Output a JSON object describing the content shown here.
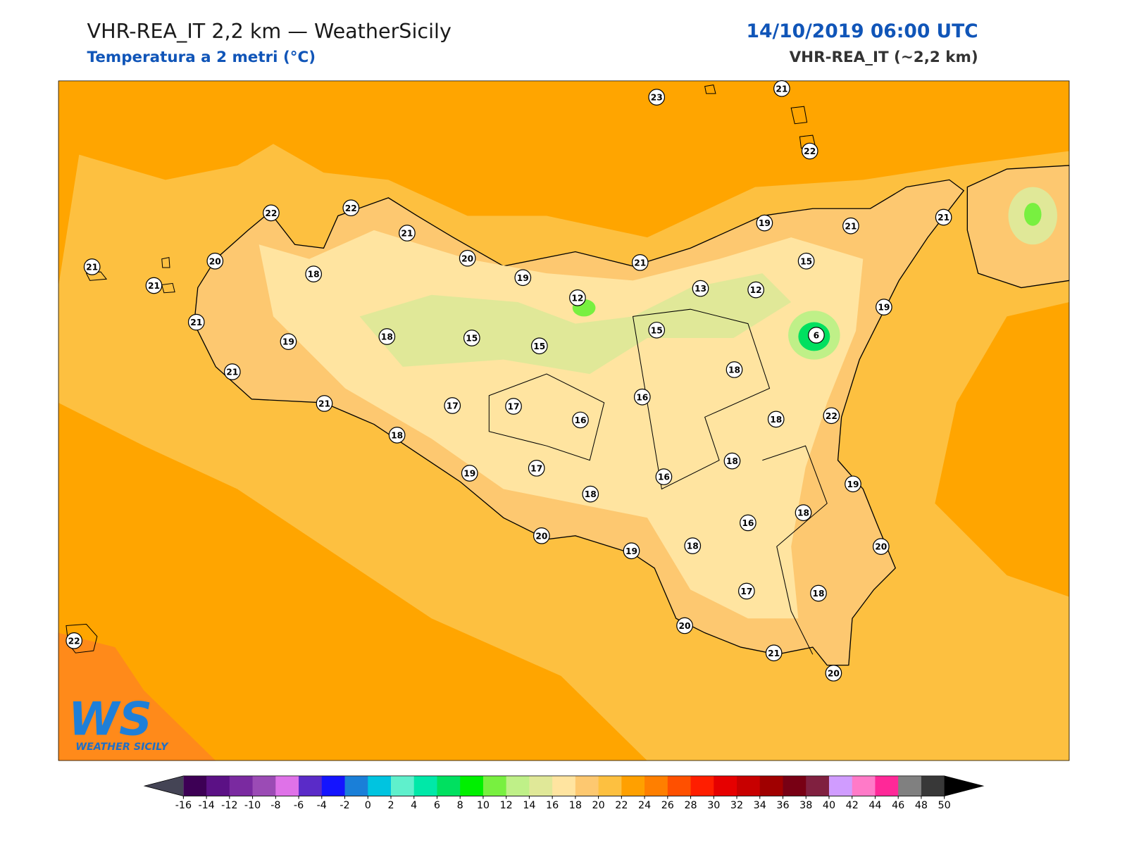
{
  "header": {
    "title": "VHR-REA_IT 2,2 km — WeatherSicily",
    "subtitle": "Temperatura a 2 metri (°C)",
    "datetime": "14/10/2019 06:00 UTC",
    "model": "VHR-REA_IT (~2,2 km)"
  },
  "logo": {
    "mark": "WS",
    "name": "WEATHER SICILY"
  },
  "stations": [
    23,
    21,
    22,
    22,
    22,
    21,
    20,
    21,
    21,
    18,
    21,
    19,
    21,
    20,
    19,
    12,
    21,
    19,
    21,
    21,
    15,
    13,
    12,
    19,
    6,
    18,
    15,
    15,
    15,
    18,
    16,
    17,
    17,
    16,
    21,
    18,
    18,
    22,
    18,
    19,
    17,
    18,
    16,
    19,
    18,
    16,
    20,
    19,
    18,
    20,
    17,
    18,
    20,
    21,
    20,
    22
  ],
  "colorbar": {
    "ticks": [
      -16,
      -14,
      -12,
      -10,
      -8,
      -6,
      -4,
      -2,
      0,
      2,
      4,
      6,
      8,
      10,
      12,
      14,
      16,
      18,
      20,
      22,
      24,
      26,
      28,
      30,
      32,
      34,
      36,
      38,
      40,
      42,
      44,
      46,
      48,
      50
    ],
    "colors": [
      "#3d0055",
      "#5b1185",
      "#7a2aa0",
      "#9b4bb5",
      "#df72e8",
      "#5a2bc8",
      "#1414ff",
      "#1a7fd8",
      "#00c4e0",
      "#5ff0cc",
      "#00e8a8",
      "#00e060",
      "#00f000",
      "#78f040",
      "#bff088",
      "#e0e898",
      "#ffe4a0",
      "#fdc870",
      "#fdc040",
      "#ffa000",
      "#ff7f00",
      "#ff5000",
      "#ff1e00",
      "#e60000",
      "#c80000",
      "#a00000",
      "#780014",
      "#802040",
      "#d09cff",
      "#ff7ac8",
      "#ff2898",
      "#808080",
      "#383838"
    ],
    "under": "#444455",
    "over": "#000000"
  }
}
